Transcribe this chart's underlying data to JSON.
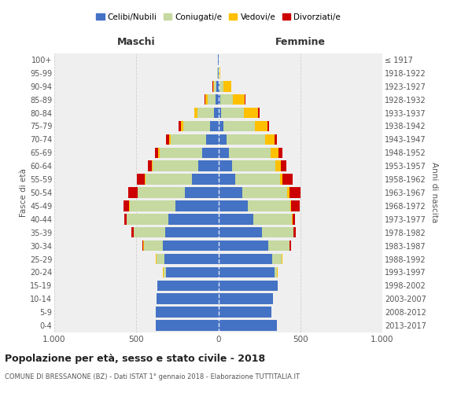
{
  "age_groups": [
    "0-4",
    "5-9",
    "10-14",
    "15-19",
    "20-24",
    "25-29",
    "30-34",
    "35-39",
    "40-44",
    "45-49",
    "50-54",
    "55-59",
    "60-64",
    "65-69",
    "70-74",
    "75-79",
    "80-84",
    "85-89",
    "90-94",
    "95-99",
    "100+"
  ],
  "birth_years": [
    "2013-2017",
    "2008-2012",
    "2003-2007",
    "1998-2002",
    "1993-1997",
    "1988-1992",
    "1983-1987",
    "1978-1982",
    "1973-1977",
    "1968-1972",
    "1963-1967",
    "1958-1962",
    "1953-1957",
    "1948-1952",
    "1943-1947",
    "1938-1942",
    "1933-1937",
    "1928-1932",
    "1923-1927",
    "1918-1922",
    "≤ 1917"
  ],
  "colors": {
    "celibi": "#4472c4",
    "coniugati": "#c5d9a0",
    "vedovi": "#ffc000",
    "divorziati": "#cc0000"
  },
  "maschi": {
    "celibi": [
      380,
      380,
      375,
      370,
      320,
      330,
      340,
      325,
      305,
      260,
      205,
      160,
      120,
      100,
      75,
      50,
      28,
      15,
      10,
      4,
      2
    ],
    "coniugati": [
      0,
      0,
      1,
      2,
      15,
      48,
      115,
      190,
      255,
      280,
      285,
      285,
      280,
      255,
      215,
      165,
      100,
      50,
      15,
      2,
      0
    ],
    "vedovi": [
      0,
      0,
      0,
      0,
      2,
      1,
      1,
      1,
      1,
      2,
      2,
      4,
      5,
      10,
      10,
      14,
      18,
      15,
      8,
      2,
      0
    ],
    "divorziati": [
      0,
      0,
      0,
      0,
      0,
      2,
      5,
      12,
      14,
      38,
      58,
      48,
      22,
      20,
      18,
      12,
      2,
      2,
      2,
      0,
      0
    ]
  },
  "femmine": {
    "celibi": [
      355,
      325,
      335,
      360,
      345,
      330,
      305,
      265,
      215,
      180,
      145,
      105,
      85,
      65,
      48,
      30,
      18,
      12,
      8,
      3,
      2
    ],
    "coniugati": [
      0,
      0,
      0,
      4,
      14,
      58,
      128,
      192,
      232,
      260,
      275,
      270,
      265,
      255,
      235,
      195,
      140,
      75,
      25,
      3,
      0
    ],
    "vedovi": [
      0,
      0,
      0,
      0,
      1,
      1,
      1,
      2,
      4,
      6,
      12,
      18,
      32,
      48,
      58,
      75,
      85,
      75,
      45,
      5,
      0
    ],
    "divorziati": [
      0,
      0,
      0,
      0,
      2,
      4,
      8,
      12,
      18,
      52,
      68,
      58,
      32,
      22,
      16,
      10,
      7,
      4,
      2,
      0,
      0
    ]
  },
  "title": "Popolazione per età, sesso e stato civile - 2018",
  "subtitle": "COMUNE DI BRESSANONE (BZ) - Dati ISTAT 1° gennaio 2018 - Elaborazione TUTTITALIA.IT",
  "maschi_label": "Maschi",
  "femmine_label": "Femmine",
  "ylabel_left": "Fasce di età",
  "ylabel_right": "Anni di nascita",
  "xlim": 1000,
  "bg_color": "#ffffff",
  "plot_bg": "#efefef",
  "grid_color": "#cccccc",
  "legend_labels": [
    "Celibi/Nubili",
    "Coniugati/e",
    "Vedovi/e",
    "Divorziati/e"
  ]
}
